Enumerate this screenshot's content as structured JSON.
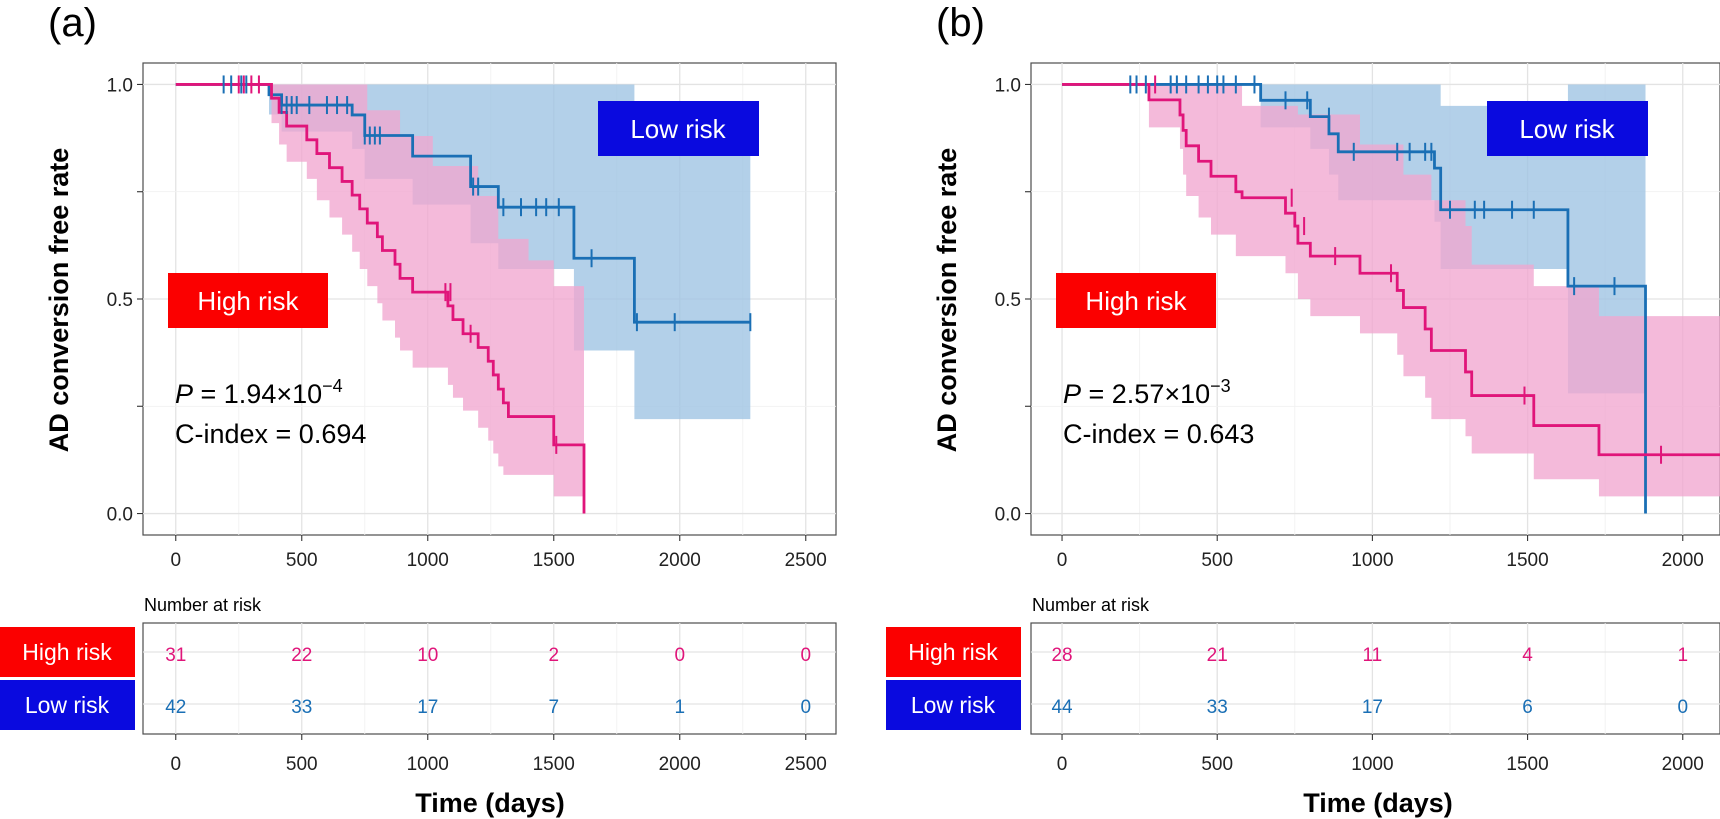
{
  "chart_data": [
    {
      "panel_label": "(a)",
      "type": "line",
      "subtype": "kaplan-meier",
      "ylabel": "AD conversion free rate",
      "xlabel": "Time (days)",
      "xlim": [
        -130,
        2620
      ],
      "ylim": [
        -0.05,
        1.05
      ],
      "xticks": [
        "0",
        "500",
        "1000",
        "1500",
        "2000",
        "2500"
      ],
      "xtick_values": [
        0,
        500,
        1000,
        1500,
        2000,
        2500
      ],
      "yticks": [
        "0.0",
        "0.5",
        "1.0"
      ],
      "ytick_values": [
        0,
        0.5,
        1.0
      ],
      "annotations": {
        "p_prefix": "P",
        "p_value": " = 1.94×10",
        "p_exp": "−4",
        "c_index": "C-index = 0.694"
      },
      "series": [
        {
          "name": "Low risk",
          "color": "#1a6fb5",
          "band_color": "#9ec3e3",
          "label_bg": "#0a0adf",
          "steps": [
            [
              0,
              1.0
            ],
            [
              370,
              0.976
            ],
            [
              420,
              0.952
            ],
            [
              700,
              0.929
            ],
            [
              750,
              0.881
            ],
            [
              940,
              0.833
            ],
            [
              1170,
              0.762
            ],
            [
              1280,
              0.714
            ],
            [
              1580,
              0.595
            ],
            [
              1820,
              0.446
            ],
            [
              2280,
              0.446
            ]
          ],
          "lower": [
            [
              0,
              1.0
            ],
            [
              370,
              0.93
            ],
            [
              420,
              0.89
            ],
            [
              700,
              0.85
            ],
            [
              750,
              0.78
            ],
            [
              940,
              0.72
            ],
            [
              1170,
              0.63
            ],
            [
              1280,
              0.57
            ],
            [
              1580,
              0.38
            ],
            [
              1820,
              0.22
            ],
            [
              2280,
              0.22
            ]
          ],
          "upper": [
            [
              0,
              1.0
            ],
            [
              1580,
              1.0
            ],
            [
              1820,
              0.95
            ],
            [
              2280,
              0.95
            ]
          ],
          "censors": [
            [
              190,
              1.0
            ],
            [
              220,
              1.0
            ],
            [
              260,
              1.0
            ],
            [
              280,
              1.0
            ],
            [
              420,
              0.952
            ],
            [
              440,
              0.952
            ],
            [
              460,
              0.952
            ],
            [
              480,
              0.952
            ],
            [
              530,
              0.952
            ],
            [
              600,
              0.952
            ],
            [
              640,
              0.952
            ],
            [
              680,
              0.952
            ],
            [
              750,
              0.881
            ],
            [
              770,
              0.881
            ],
            [
              790,
              0.881
            ],
            [
              810,
              0.881
            ],
            [
              1180,
              0.762
            ],
            [
              1200,
              0.762
            ],
            [
              1300,
              0.714
            ],
            [
              1370,
              0.714
            ],
            [
              1430,
              0.714
            ],
            [
              1470,
              0.714
            ],
            [
              1520,
              0.714
            ],
            [
              1650,
              0.595
            ],
            [
              1830,
              0.446
            ],
            [
              1980,
              0.446
            ],
            [
              2280,
              0.446
            ]
          ]
        },
        {
          "name": "High risk",
          "color": "#e0157a",
          "band_color": "#f1a6cf",
          "label_bg": "#fb0000",
          "steps": [
            [
              0,
              1.0
            ],
            [
              380,
              0.968
            ],
            [
              410,
              0.935
            ],
            [
              440,
              0.903
            ],
            [
              520,
              0.871
            ],
            [
              560,
              0.839
            ],
            [
              610,
              0.806
            ],
            [
              660,
              0.774
            ],
            [
              700,
              0.742
            ],
            [
              730,
              0.71
            ],
            [
              760,
              0.677
            ],
            [
              800,
              0.645
            ],
            [
              820,
              0.613
            ],
            [
              870,
              0.581
            ],
            [
              890,
              0.548
            ],
            [
              940,
              0.516
            ],
            [
              1080,
              0.484
            ],
            [
              1100,
              0.452
            ],
            [
              1140,
              0.419
            ],
            [
              1200,
              0.387
            ],
            [
              1240,
              0.355
            ],
            [
              1260,
              0.323
            ],
            [
              1280,
              0.29
            ],
            [
              1300,
              0.258
            ],
            [
              1320,
              0.226
            ],
            [
              1500,
              0.16
            ],
            [
              1620,
              0.0
            ]
          ],
          "lower": [
            [
              0,
              1.0
            ],
            [
              380,
              0.91
            ],
            [
              410,
              0.86
            ],
            [
              440,
              0.82
            ],
            [
              520,
              0.78
            ],
            [
              560,
              0.73
            ],
            [
              610,
              0.69
            ],
            [
              660,
              0.65
            ],
            [
              700,
              0.61
            ],
            [
              730,
              0.57
            ],
            [
              760,
              0.53
            ],
            [
              800,
              0.49
            ],
            [
              820,
              0.45
            ],
            [
              870,
              0.41
            ],
            [
              890,
              0.38
            ],
            [
              940,
              0.34
            ],
            [
              1080,
              0.3
            ],
            [
              1100,
              0.27
            ],
            [
              1140,
              0.24
            ],
            [
              1200,
              0.2
            ],
            [
              1240,
              0.17
            ],
            [
              1260,
              0.14
            ],
            [
              1280,
              0.11
            ],
            [
              1300,
              0.09
            ],
            [
              1500,
              0.04
            ],
            [
              1620,
              0.04
            ]
          ],
          "upper": [
            [
              0,
              1.0
            ],
            [
              700,
              1.0
            ],
            [
              760,
              0.94
            ],
            [
              890,
              0.88
            ],
            [
              1020,
              0.81
            ],
            [
              1200,
              0.74
            ],
            [
              1280,
              0.64
            ],
            [
              1400,
              0.59
            ],
            [
              1500,
              0.53
            ],
            [
              1620,
              0.53
            ]
          ],
          "censors": [
            [
              250,
              1.0
            ],
            [
              270,
              1.0
            ],
            [
              300,
              1.0
            ],
            [
              330,
              1.0
            ],
            [
              1070,
              0.516
            ],
            [
              1090,
              0.516
            ],
            [
              1170,
              0.419
            ],
            [
              1510,
              0.16
            ]
          ]
        }
      ],
      "labels": {
        "low": "Low risk",
        "high": "High risk"
      },
      "risk_table": {
        "title": "Number at risk",
        "rows": [
          {
            "label": "High risk",
            "counts": [
              "31",
              "22",
              "10",
              "2",
              "0",
              "0"
            ]
          },
          {
            "label": "Low risk",
            "counts": [
              "42",
              "33",
              "17",
              "7",
              "1",
              "0"
            ]
          }
        ]
      }
    },
    {
      "panel_label": "(b)",
      "type": "line",
      "subtype": "kaplan-meier",
      "ylabel": "AD conversion free rate",
      "xlabel": "Time (days)",
      "xlim": [
        -100,
        2120
      ],
      "ylim": [
        -0.05,
        1.05
      ],
      "xticks": [
        "0",
        "500",
        "1000",
        "1500",
        "2000"
      ],
      "xtick_values": [
        0,
        500,
        1000,
        1500,
        2000
      ],
      "yticks": [
        "0.0",
        "0.5",
        "1.0"
      ],
      "ytick_values": [
        0,
        0.5,
        1.0
      ],
      "annotations": {
        "p_prefix": "P",
        "p_value": " = 2.57×10",
        "p_exp": "−3",
        "c_index": "C-index = 0.643"
      },
      "series": [
        {
          "name": "Low risk",
          "color": "#1a6fb5",
          "band_color": "#9ec3e3",
          "label_bg": "#0a0adf",
          "steps": [
            [
              0,
              1.0
            ],
            [
              640,
              0.963
            ],
            [
              800,
              0.925
            ],
            [
              860,
              0.885
            ],
            [
              890,
              0.843
            ],
            [
              1200,
              0.805
            ],
            [
              1220,
              0.708
            ],
            [
              1630,
              0.53
            ],
            [
              1880,
              0.0
            ]
          ],
          "lower": [
            [
              0,
              1.0
            ],
            [
              640,
              0.9
            ],
            [
              800,
              0.85
            ],
            [
              860,
              0.79
            ],
            [
              890,
              0.73
            ],
            [
              1200,
              0.68
            ],
            [
              1220,
              0.57
            ],
            [
              1630,
              0.28
            ],
            [
              1880,
              0.28
            ]
          ],
          "upper": [
            [
              0,
              1.0
            ],
            [
              1200,
              1.0
            ],
            [
              1220,
              0.95
            ],
            [
              1630,
              1.0
            ],
            [
              1880,
              1.0
            ]
          ],
          "censors": [
            [
              220,
              1.0
            ],
            [
              240,
              1.0
            ],
            [
              270,
              1.0
            ],
            [
              350,
              1.0
            ],
            [
              370,
              1.0
            ],
            [
              400,
              1.0
            ],
            [
              440,
              1.0
            ],
            [
              470,
              1.0
            ],
            [
              500,
              1.0
            ],
            [
              520,
              1.0
            ],
            [
              560,
              1.0
            ],
            [
              620,
              1.0
            ],
            [
              720,
              0.963
            ],
            [
              790,
              0.963
            ],
            [
              860,
              0.925
            ],
            [
              940,
              0.843
            ],
            [
              1080,
              0.843
            ],
            [
              1120,
              0.843
            ],
            [
              1170,
              0.843
            ],
            [
              1190,
              0.843
            ],
            [
              1250,
              0.708
            ],
            [
              1330,
              0.708
            ],
            [
              1360,
              0.708
            ],
            [
              1450,
              0.708
            ],
            [
              1520,
              0.708
            ],
            [
              1650,
              0.53
            ],
            [
              1780,
              0.53
            ]
          ]
        },
        {
          "name": "High risk",
          "color": "#e0157a",
          "band_color": "#f1a6cf",
          "label_bg": "#fb0000",
          "steps": [
            [
              0,
              1.0
            ],
            [
              280,
              0.964
            ],
            [
              380,
              0.929
            ],
            [
              390,
              0.893
            ],
            [
              400,
              0.857
            ],
            [
              440,
              0.821
            ],
            [
              480,
              0.786
            ],
            [
              560,
              0.75
            ],
            [
              580,
              0.736
            ],
            [
              720,
              0.7
            ],
            [
              750,
              0.67
            ],
            [
              760,
              0.63
            ],
            [
              800,
              0.6
            ],
            [
              960,
              0.56
            ],
            [
              1080,
              0.52
            ],
            [
              1100,
              0.48
            ],
            [
              1170,
              0.43
            ],
            [
              1190,
              0.38
            ],
            [
              1300,
              0.33
            ],
            [
              1320,
              0.275
            ],
            [
              1520,
              0.205
            ],
            [
              1730,
              0.137
            ],
            [
              2120,
              0.137
            ]
          ],
          "lower": [
            [
              0,
              1.0
            ],
            [
              280,
              0.9
            ],
            [
              380,
              0.85
            ],
            [
              390,
              0.79
            ],
            [
              400,
              0.74
            ],
            [
              440,
              0.69
            ],
            [
              480,
              0.65
            ],
            [
              560,
              0.6
            ],
            [
              720,
              0.56
            ],
            [
              760,
              0.5
            ],
            [
              800,
              0.46
            ],
            [
              960,
              0.42
            ],
            [
              1080,
              0.37
            ],
            [
              1100,
              0.32
            ],
            [
              1170,
              0.27
            ],
            [
              1190,
              0.22
            ],
            [
              1300,
              0.18
            ],
            [
              1320,
              0.14
            ],
            [
              1520,
              0.08
            ],
            [
              1730,
              0.04
            ],
            [
              2120,
              0.04
            ]
          ],
          "upper": [
            [
              0,
              1.0
            ],
            [
              560,
              1.0
            ],
            [
              580,
              0.95
            ],
            [
              760,
              0.93
            ],
            [
              960,
              0.86
            ],
            [
              1100,
              0.79
            ],
            [
              1190,
              0.73
            ],
            [
              1300,
              0.67
            ],
            [
              1320,
              0.58
            ],
            [
              1520,
              0.53
            ],
            [
              1730,
              0.46
            ],
            [
              2120,
              0.46
            ]
          ],
          "censors": [
            [
              300,
              1.0
            ],
            [
              740,
              0.736
            ],
            [
              780,
              0.67
            ],
            [
              880,
              0.6
            ],
            [
              1060,
              0.56
            ],
            [
              1490,
              0.275
            ],
            [
              1930,
              0.137
            ]
          ]
        }
      ],
      "labels": {
        "low": "Low risk",
        "high": "High risk"
      },
      "risk_table": {
        "title": "Number at risk",
        "rows": [
          {
            "label": "High risk",
            "counts": [
              "28",
              "21",
              "11",
              "4",
              "1"
            ]
          },
          {
            "label": "Low risk",
            "counts": [
              "44",
              "33",
              "17",
              "6",
              "0"
            ]
          }
        ]
      }
    }
  ]
}
